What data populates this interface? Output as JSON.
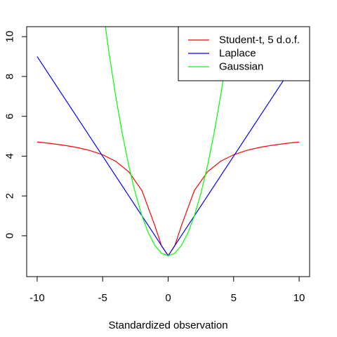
{
  "chart_data": {
    "type": "line",
    "xlabel": "Standardized observation",
    "ylabel": "",
    "xlim": [
      -10.8,
      10.8
    ],
    "ylim": [
      -2.05,
      10.5
    ],
    "x_ticks": [
      -10,
      -5,
      0,
      5,
      10
    ],
    "y_ticks": [
      0,
      2,
      4,
      6,
      8,
      10
    ],
    "grid": false,
    "legend_position": "top-right",
    "series": [
      {
        "name": "Student-t, 5 d.o.f.",
        "color": "#ff0000",
        "x": [
          -10,
          -9,
          -8,
          -7,
          -6,
          -5,
          -4,
          -3,
          -2,
          -1,
          -0.5,
          0,
          0.5,
          1,
          2,
          3,
          4,
          5,
          6,
          7,
          8,
          9,
          10
        ],
        "y": [
          4.71,
          4.64,
          4.55,
          4.44,
          4.29,
          4.07,
          3.74,
          3.21,
          2.27,
          0.48,
          -0.51,
          -1.0,
          -0.51,
          0.48,
          2.27,
          3.21,
          3.74,
          4.07,
          4.29,
          4.44,
          4.55,
          4.64,
          4.71
        ]
      },
      {
        "name": "Laplace",
        "color": "#0000ff",
        "x": [
          -10,
          0,
          10
        ],
        "y": [
          9.0,
          -1.0,
          9.0
        ]
      },
      {
        "name": "Gaussian",
        "color": "#00ff00",
        "x": [
          -5.5,
          -5,
          -4.5,
          -4,
          -3.5,
          -3,
          -2.5,
          -2,
          -1.5,
          -1,
          -0.5,
          0,
          0.5,
          1,
          1.5,
          2,
          2.5,
          3,
          3.5,
          4,
          4.5,
          5,
          5.5
        ],
        "y": [
          14.13,
          11.5,
          9.13,
          7.0,
          5.13,
          3.5,
          2.13,
          1.0,
          0.13,
          -0.5,
          -0.88,
          -1.0,
          -0.88,
          -0.5,
          0.13,
          1.0,
          2.13,
          3.5,
          5.13,
          7.0,
          9.13,
          11.5,
          14.13
        ]
      }
    ]
  }
}
